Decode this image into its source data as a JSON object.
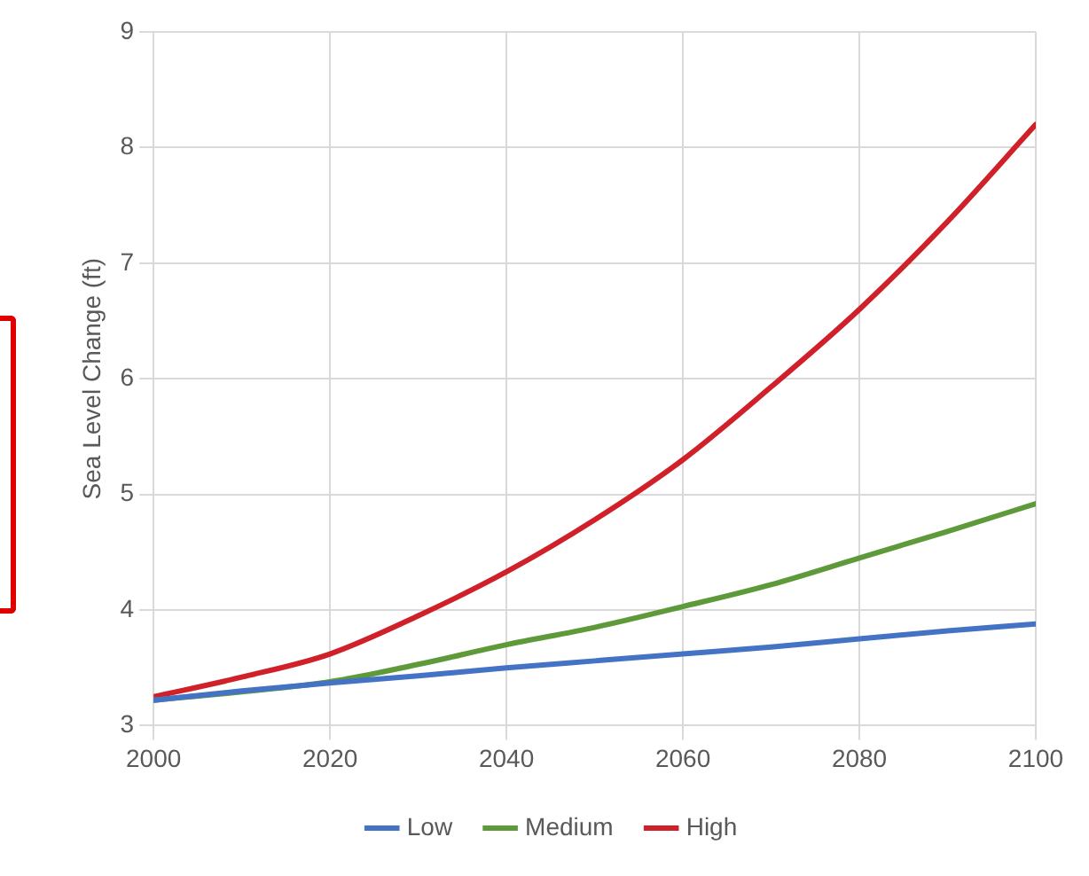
{
  "chart_data": {
    "type": "line",
    "ylabel": "Sea Level Change (ft)",
    "x": [
      2000,
      2010,
      2020,
      2030,
      2040,
      2050,
      2060,
      2070,
      2080,
      2090,
      2100
    ],
    "series": [
      {
        "name": "Low",
        "color": "#4472c4",
        "values": [
          3.22,
          3.3,
          3.37,
          3.43,
          3.5,
          3.56,
          3.62,
          3.68,
          3.75,
          3.82,
          3.88
        ]
      },
      {
        "name": "Medium",
        "color": "#5e9a3a",
        "x": [
          2000,
          2020,
          2030,
          2040,
          2050,
          2060,
          2070,
          2080,
          2090,
          2100
        ],
        "values": [
          3.22,
          3.38,
          3.53,
          3.7,
          3.85,
          4.03,
          4.22,
          4.45,
          4.68,
          4.92
        ]
      },
      {
        "name": "High",
        "color": "#d0202a",
        "values": [
          3.25,
          3.42,
          3.62,
          3.95,
          4.33,
          4.78,
          5.3,
          5.93,
          6.6,
          7.36,
          8.2
        ]
      }
    ],
    "xlim": [
      2000,
      2100
    ],
    "xticks": [
      2000,
      2020,
      2040,
      2060,
      2080,
      2100
    ],
    "ylim": [
      3,
      9
    ],
    "yticks": [
      3,
      4,
      5,
      6,
      7,
      8,
      9
    ],
    "grid": true,
    "legend": "bottom",
    "marker": "none",
    "line_style": "solid"
  }
}
